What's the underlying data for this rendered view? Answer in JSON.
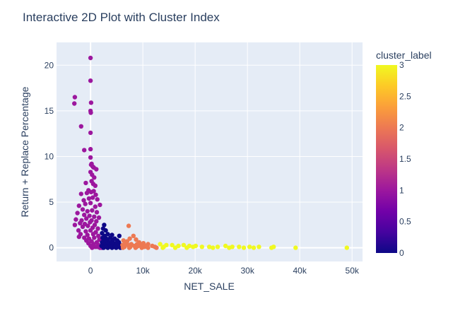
{
  "chart_data": {
    "type": "scatter",
    "title": "Interactive 2D Plot with Cluster Index",
    "xlabel": "NET_SALE",
    "ylabel": "Return + Replace Percentage",
    "xlim": [
      -6500,
      52000
    ],
    "ylim": [
      -1.5,
      22.5
    ],
    "x_ticks": [
      0,
      10000,
      20000,
      30000,
      40000,
      50000
    ],
    "x_tick_labels": [
      "0",
      "10k",
      "20k",
      "30k",
      "40k",
      "50k"
    ],
    "y_ticks": [
      0,
      5,
      10,
      15,
      20
    ],
    "y_tick_labels": [
      "0",
      "5",
      "10",
      "15",
      "20"
    ],
    "grid": true,
    "plot_bgcolor": "#e5ecf6",
    "colorbar": {
      "title": "cluster_label",
      "min": 0,
      "max": 3,
      "ticks": [
        0,
        0.5,
        1,
        1.5,
        2,
        2.5,
        3
      ],
      "tick_labels": [
        "0",
        "0.5",
        "1",
        "1.5",
        "2",
        "2.5",
        "3"
      ],
      "colorscale": [
        "#0d0887",
        "#46039f",
        "#7201a8",
        "#9c179e",
        "#bd3786",
        "#d8576b",
        "#ed7953",
        "#fb9f3a",
        "#fdca26",
        "#f0f921"
      ]
    },
    "points": [
      {
        "x": 0,
        "y": 20.8,
        "c": 1
      },
      {
        "x": 0,
        "y": 18.3,
        "c": 1
      },
      {
        "x": -3000,
        "y": 16.5,
        "c": 1
      },
      {
        "x": -3100,
        "y": 15.8,
        "c": 1
      },
      {
        "x": 100,
        "y": 15.9,
        "c": 1
      },
      {
        "x": 0,
        "y": 15.0,
        "c": 1
      },
      {
        "x": 50,
        "y": 14.8,
        "c": 1
      },
      {
        "x": -1800,
        "y": 13.3,
        "c": 1
      },
      {
        "x": 0,
        "y": 12.6,
        "c": 1
      },
      {
        "x": -1200,
        "y": 10.7,
        "c": 1
      },
      {
        "x": 0,
        "y": 10.8,
        "c": 1
      },
      {
        "x": 0,
        "y": 9.9,
        "c": 1
      },
      {
        "x": 100,
        "y": 9.1,
        "c": 1
      },
      {
        "x": 200,
        "y": 9.2,
        "c": 1
      },
      {
        "x": 400,
        "y": 8.9,
        "c": 1
      },
      {
        "x": 600,
        "y": 8.8,
        "c": 1
      },
      {
        "x": 1100,
        "y": 8.6,
        "c": 1
      },
      {
        "x": 0,
        "y": 8.3,
        "c": 1
      },
      {
        "x": 300,
        "y": 8.0,
        "c": 1
      },
      {
        "x": 700,
        "y": 7.7,
        "c": 1
      },
      {
        "x": -900,
        "y": 7.1,
        "c": 1
      },
      {
        "x": 200,
        "y": 7.3,
        "c": 1
      },
      {
        "x": 500,
        "y": 7.0,
        "c": 1
      },
      {
        "x": 900,
        "y": 6.8,
        "c": 1
      },
      {
        "x": -400,
        "y": 6.3,
        "c": 1
      },
      {
        "x": -1800,
        "y": 5.9,
        "c": 1
      },
      {
        "x": -700,
        "y": 6.0,
        "c": 1
      },
      {
        "x": 100,
        "y": 6.1,
        "c": 1
      },
      {
        "x": 600,
        "y": 6.2,
        "c": 1
      },
      {
        "x": 1000,
        "y": 5.8,
        "c": 1
      },
      {
        "x": -1300,
        "y": 5.2,
        "c": 1
      },
      {
        "x": -300,
        "y": 5.4,
        "c": 1
      },
      {
        "x": 400,
        "y": 5.5,
        "c": 1
      },
      {
        "x": 1300,
        "y": 5.3,
        "c": 1
      },
      {
        "x": -2200,
        "y": 4.6,
        "c": 1
      },
      {
        "x": -1000,
        "y": 4.8,
        "c": 1
      },
      {
        "x": 0,
        "y": 4.9,
        "c": 1
      },
      {
        "x": 900,
        "y": 4.5,
        "c": 1
      },
      {
        "x": 1800,
        "y": 4.7,
        "c": 1
      },
      {
        "x": -1500,
        "y": 4.2,
        "c": 1
      },
      {
        "x": -600,
        "y": 4.0,
        "c": 1
      },
      {
        "x": 300,
        "y": 4.1,
        "c": 1
      },
      {
        "x": 1200,
        "y": 3.9,
        "c": 1
      },
      {
        "x": -2500,
        "y": 3.8,
        "c": 1
      },
      {
        "x": -1200,
        "y": 3.6,
        "c": 1
      },
      {
        "x": -200,
        "y": 3.5,
        "c": 1
      },
      {
        "x": 700,
        "y": 3.4,
        "c": 1
      },
      {
        "x": 1600,
        "y": 3.3,
        "c": 1
      },
      {
        "x": -2800,
        "y": 3.1,
        "c": 1
      },
      {
        "x": -1700,
        "y": 3.0,
        "c": 1
      },
      {
        "x": -800,
        "y": 3.2,
        "c": 1
      },
      {
        "x": 200,
        "y": 3.0,
        "c": 1
      },
      {
        "x": 1100,
        "y": 2.9,
        "c": 1
      },
      {
        "x": -2000,
        "y": 2.7,
        "c": 1
      },
      {
        "x": -1100,
        "y": 2.6,
        "c": 1
      },
      {
        "x": -100,
        "y": 2.8,
        "c": 1
      },
      {
        "x": 800,
        "y": 2.5,
        "c": 1
      },
      {
        "x": -3000,
        "y": 2.5,
        "c": 1
      },
      {
        "x": -1500,
        "y": 2.3,
        "c": 1
      },
      {
        "x": -500,
        "y": 2.4,
        "c": 1
      },
      {
        "x": 400,
        "y": 2.2,
        "c": 1
      },
      {
        "x": 1400,
        "y": 2.1,
        "c": 1
      },
      {
        "x": -2300,
        "y": 1.9,
        "c": 1
      },
      {
        "x": -900,
        "y": 1.8,
        "c": 1
      },
      {
        "x": 0,
        "y": 1.9,
        "c": 1
      },
      {
        "x": 1000,
        "y": 1.7,
        "c": 1
      },
      {
        "x": -1900,
        "y": 1.5,
        "c": 1
      },
      {
        "x": -600,
        "y": 1.4,
        "c": 1
      },
      {
        "x": 500,
        "y": 1.5,
        "c": 1
      },
      {
        "x": 1500,
        "y": 1.3,
        "c": 1
      },
      {
        "x": -2200,
        "y": 1.2,
        "c": 1
      },
      {
        "x": -1200,
        "y": 1.1,
        "c": 1
      },
      {
        "x": -300,
        "y": 1.0,
        "c": 1
      },
      {
        "x": 700,
        "y": 1.1,
        "c": 1
      },
      {
        "x": 1700,
        "y": 0.9,
        "c": 1
      },
      {
        "x": -800,
        "y": 0.8,
        "c": 1
      },
      {
        "x": 200,
        "y": 0.7,
        "c": 1
      },
      {
        "x": 1200,
        "y": 0.6,
        "c": 1
      },
      {
        "x": -400,
        "y": 0.5,
        "c": 1
      },
      {
        "x": 600,
        "y": 0.4,
        "c": 1
      },
      {
        "x": 1500,
        "y": 0.3,
        "c": 1
      },
      {
        "x": 0,
        "y": 0.2,
        "c": 1
      },
      {
        "x": 900,
        "y": 0.1,
        "c": 1
      },
      {
        "x": 1800,
        "y": 0.0,
        "c": 1
      },
      {
        "x": 300,
        "y": 0.0,
        "c": 1
      },
      {
        "x": 1300,
        "y": 0.1,
        "c": 1
      },
      {
        "x": 2200,
        "y": 0.0,
        "c": 1
      },
      {
        "x": 2600,
        "y": 2.5,
        "c": 0
      },
      {
        "x": 2400,
        "y": 2.1,
        "c": 0
      },
      {
        "x": 2900,
        "y": 1.9,
        "c": 0
      },
      {
        "x": 2200,
        "y": 1.6,
        "c": 0
      },
      {
        "x": 3300,
        "y": 1.5,
        "c": 0
      },
      {
        "x": 2700,
        "y": 1.3,
        "c": 0
      },
      {
        "x": 4100,
        "y": 1.4,
        "c": 0
      },
      {
        "x": 5500,
        "y": 1.3,
        "c": 0
      },
      {
        "x": 2300,
        "y": 1.1,
        "c": 0
      },
      {
        "x": 3000,
        "y": 1.0,
        "c": 0
      },
      {
        "x": 3800,
        "y": 1.1,
        "c": 0
      },
      {
        "x": 4600,
        "y": 1.0,
        "c": 0
      },
      {
        "x": 2500,
        "y": 0.8,
        "c": 0
      },
      {
        "x": 3300,
        "y": 0.9,
        "c": 0
      },
      {
        "x": 4200,
        "y": 0.8,
        "c": 0
      },
      {
        "x": 5100,
        "y": 0.8,
        "c": 0
      },
      {
        "x": 2200,
        "y": 0.6,
        "c": 0
      },
      {
        "x": 2900,
        "y": 0.6,
        "c": 0
      },
      {
        "x": 3700,
        "y": 0.6,
        "c": 0
      },
      {
        "x": 4500,
        "y": 0.5,
        "c": 0
      },
      {
        "x": 5400,
        "y": 0.6,
        "c": 0
      },
      {
        "x": 2400,
        "y": 0.4,
        "c": 0
      },
      {
        "x": 3200,
        "y": 0.4,
        "c": 0
      },
      {
        "x": 4000,
        "y": 0.3,
        "c": 0
      },
      {
        "x": 4900,
        "y": 0.4,
        "c": 0
      },
      {
        "x": 5800,
        "y": 0.3,
        "c": 0
      },
      {
        "x": 2100,
        "y": 0.2,
        "c": 0
      },
      {
        "x": 2800,
        "y": 0.2,
        "c": 0
      },
      {
        "x": 3600,
        "y": 0.2,
        "c": 0
      },
      {
        "x": 4400,
        "y": 0.1,
        "c": 0
      },
      {
        "x": 5200,
        "y": 0.2,
        "c": 0
      },
      {
        "x": 2500,
        "y": 0.0,
        "c": 0
      },
      {
        "x": 3300,
        "y": 0.0,
        "c": 0
      },
      {
        "x": 4100,
        "y": 0.0,
        "c": 0
      },
      {
        "x": 4900,
        "y": 0.0,
        "c": 0
      },
      {
        "x": 5700,
        "y": 0.0,
        "c": 0
      },
      {
        "x": 3000,
        "y": 0.1,
        "c": 0
      },
      {
        "x": 3900,
        "y": 0.1,
        "c": 0
      },
      {
        "x": 4700,
        "y": 0.1,
        "c": 0
      },
      {
        "x": 5500,
        "y": 0.1,
        "c": 0
      },
      {
        "x": 7300,
        "y": 2.4,
        "c": 2
      },
      {
        "x": 8200,
        "y": 1.3,
        "c": 2
      },
      {
        "x": 7500,
        "y": 1.0,
        "c": 2
      },
      {
        "x": 8700,
        "y": 0.9,
        "c": 2
      },
      {
        "x": 6300,
        "y": 0.8,
        "c": 2
      },
      {
        "x": 7000,
        "y": 0.7,
        "c": 2
      },
      {
        "x": 9300,
        "y": 0.6,
        "c": 2
      },
      {
        "x": 10100,
        "y": 0.5,
        "c": 2
      },
      {
        "x": 6600,
        "y": 0.5,
        "c": 2
      },
      {
        "x": 7800,
        "y": 0.4,
        "c": 2
      },
      {
        "x": 8900,
        "y": 0.4,
        "c": 2
      },
      {
        "x": 11000,
        "y": 0.4,
        "c": 2
      },
      {
        "x": 6100,
        "y": 0.3,
        "c": 2
      },
      {
        "x": 7200,
        "y": 0.3,
        "c": 2
      },
      {
        "x": 8400,
        "y": 0.2,
        "c": 2
      },
      {
        "x": 9700,
        "y": 0.3,
        "c": 2
      },
      {
        "x": 11800,
        "y": 0.2,
        "c": 2
      },
      {
        "x": 6500,
        "y": 0.1,
        "c": 2
      },
      {
        "x": 7600,
        "y": 0.1,
        "c": 2
      },
      {
        "x": 8800,
        "y": 0.1,
        "c": 2
      },
      {
        "x": 10300,
        "y": 0.1,
        "c": 2
      },
      {
        "x": 12300,
        "y": 0.1,
        "c": 2
      },
      {
        "x": 6200,
        "y": 0.0,
        "c": 2
      },
      {
        "x": 7400,
        "y": 0.0,
        "c": 2
      },
      {
        "x": 8600,
        "y": 0.0,
        "c": 2
      },
      {
        "x": 9800,
        "y": 0.0,
        "c": 2
      },
      {
        "x": 11000,
        "y": 0.0,
        "c": 2
      },
      {
        "x": 12600,
        "y": 0.0,
        "c": 2
      },
      {
        "x": 10600,
        "y": 0.2,
        "c": 2
      },
      {
        "x": 9100,
        "y": 0.2,
        "c": 2
      },
      {
        "x": 13300,
        "y": 0.4,
        "c": 3
      },
      {
        "x": 14500,
        "y": 0.3,
        "c": 3
      },
      {
        "x": 15600,
        "y": 0.3,
        "c": 3
      },
      {
        "x": 16800,
        "y": 0.2,
        "c": 3
      },
      {
        "x": 17800,
        "y": 0.3,
        "c": 3
      },
      {
        "x": 18900,
        "y": 0.2,
        "c": 3
      },
      {
        "x": 20100,
        "y": 0.2,
        "c": 3
      },
      {
        "x": 21300,
        "y": 0.1,
        "c": 3
      },
      {
        "x": 22700,
        "y": 0.1,
        "c": 3
      },
      {
        "x": 24300,
        "y": 0.1,
        "c": 3
      },
      {
        "x": 25800,
        "y": 0.2,
        "c": 3
      },
      {
        "x": 27100,
        "y": 0.1,
        "c": 3
      },
      {
        "x": 28400,
        "y": 0.1,
        "c": 3
      },
      {
        "x": 30400,
        "y": 0.1,
        "c": 3
      },
      {
        "x": 31200,
        "y": 0.0,
        "c": 3
      },
      {
        "x": 32200,
        "y": 0.1,
        "c": 3
      },
      {
        "x": 34600,
        "y": 0.0,
        "c": 3
      },
      {
        "x": 35000,
        "y": 0.1,
        "c": 3
      },
      {
        "x": 39200,
        "y": 0.0,
        "c": 3
      },
      {
        "x": 49000,
        "y": 0.0,
        "c": 3
      },
      {
        "x": 14000,
        "y": 0.1,
        "c": 3
      },
      {
        "x": 16200,
        "y": 0.0,
        "c": 3
      },
      {
        "x": 18400,
        "y": 0.0,
        "c": 3
      },
      {
        "x": 19600,
        "y": 0.1,
        "c": 3
      },
      {
        "x": 23400,
        "y": 0.0,
        "c": 3
      },
      {
        "x": 26500,
        "y": 0.0,
        "c": 3
      },
      {
        "x": 29300,
        "y": 0.0,
        "c": 3
      },
      {
        "x": 13800,
        "y": 0.0,
        "c": 3
      }
    ]
  }
}
